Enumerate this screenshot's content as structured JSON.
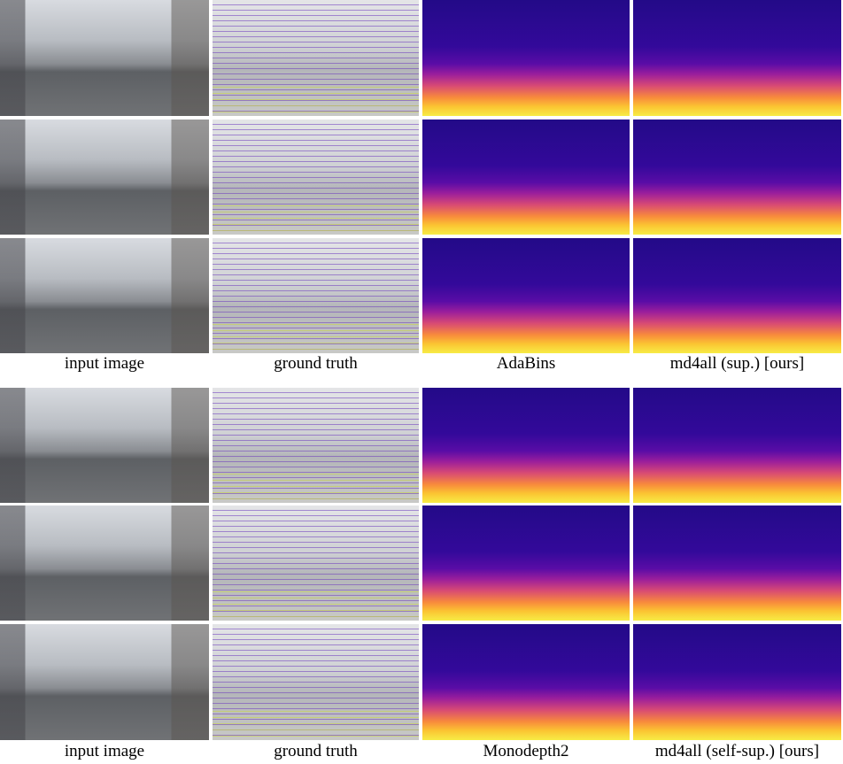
{
  "blocks": [
    {
      "captions": [
        "input image",
        "ground truth",
        "AdaBins",
        "md4all (sup.) [ours]"
      ]
    },
    {
      "captions": [
        "input image",
        "ground truth",
        "Monodepth2",
        "md4all (self-sup.) [ours]"
      ]
    }
  ]
}
